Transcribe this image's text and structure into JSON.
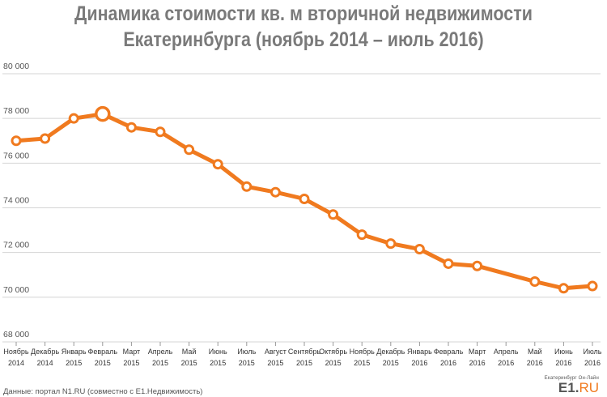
{
  "title_line1": "Динамика стоимости кв. м вторичной недвижимости",
  "title_line2": "Екатеринбурга (ноябрь 2014 – июль 2016)",
  "footer": "Данные: портал N1.RU (совместно с Е1.Недвижимость)",
  "logo": {
    "tagline": "Екатеринбург Он-Лайн",
    "brand_main": "E1.",
    "brand_suffix": "RU"
  },
  "colors": {
    "line": "#f07a1f",
    "grid": "#d4d4d4",
    "title": "#7a7a7a"
  },
  "chart_data": {
    "type": "line",
    "title": "Динамика стоимости кв. м вторичной недвижимости Екатеринбурга (ноябрь 2014 – июль 2016)",
    "xlabel": "",
    "ylabel": "",
    "ylim": [
      68000,
      80000
    ],
    "yticks": [
      "80 000",
      "78 000",
      "76 000",
      "74 000",
      "72 000",
      "70 000",
      "68 000"
    ],
    "ytick_values": [
      80000,
      78000,
      76000,
      74000,
      72000,
      70000,
      68000
    ],
    "grid": true,
    "categories": [
      [
        "Ноябрь",
        "2014"
      ],
      [
        "Декабрь",
        "2014"
      ],
      [
        "Январь",
        "2015"
      ],
      [
        "Февраль",
        "2015"
      ],
      [
        "Март",
        "2015"
      ],
      [
        "Апрель",
        "2015"
      ],
      [
        "Май",
        "2015"
      ],
      [
        "Июнь",
        "2015"
      ],
      [
        "Июль",
        "2015"
      ],
      [
        "Август",
        "2015"
      ],
      [
        "Сентябрь",
        "2015"
      ],
      [
        "Октябрь",
        "2015"
      ],
      [
        "Ноябрь",
        "2015"
      ],
      [
        "Декабрь",
        "2015"
      ],
      [
        "Январь",
        "2016"
      ],
      [
        "Февраль",
        "2016"
      ],
      [
        "Март",
        "2016"
      ],
      [
        "Апрель",
        "2016"
      ],
      [
        "Май",
        "2016"
      ],
      [
        "Июнь",
        "2016"
      ],
      [
        "Июль",
        "2016"
      ]
    ],
    "values": [
      77000,
      77100,
      78000,
      78200,
      77600,
      77400,
      76600,
      75950,
      74950,
      74700,
      74400,
      73700,
      72800,
      72400,
      72150,
      71500,
      71400,
      null,
      70700,
      70400,
      70500
    ],
    "highlight_index": 3
  }
}
